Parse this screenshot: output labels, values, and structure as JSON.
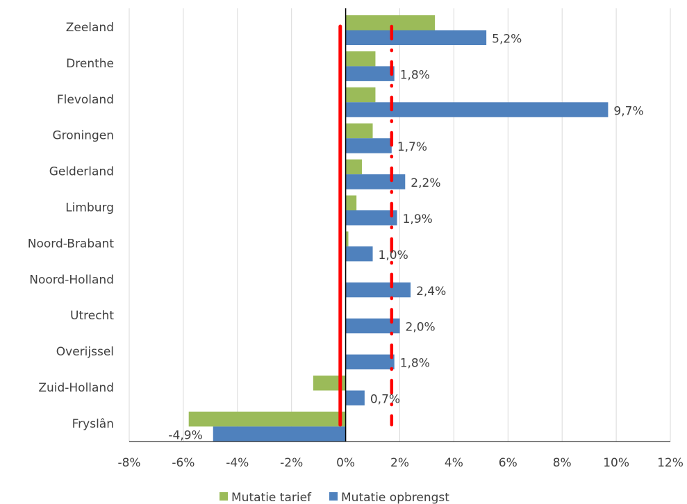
{
  "chart_data": {
    "type": "bar",
    "orientation": "horizontal",
    "categories": [
      "Zeeland",
      "Drenthe",
      "Flevoland",
      "Groningen",
      "Gelderland",
      "Limburg",
      "Noord-Brabant",
      "Noord-Holland",
      "Utrecht",
      "Overijssel",
      "Zuid-Holland",
      "Fryslân"
    ],
    "series": [
      {
        "name": "Mutatie tarief",
        "color": "#9bbb59",
        "values": [
          3.3,
          1.1,
          1.1,
          1.0,
          0.6,
          0.4,
          0.1,
          0.0,
          0.0,
          0.0,
          -1.2,
          -5.8
        ]
      },
      {
        "name": "Mutatie opbrengst",
        "color": "#4f81bd",
        "values": [
          5.2,
          1.8,
          9.7,
          1.7,
          2.2,
          1.9,
          1.0,
          2.4,
          2.0,
          1.8,
          0.7,
          -4.9
        ],
        "labels": [
          "5,2%",
          "1,8%",
          "9,7%",
          "1,7%",
          "2,2%",
          "1,9%",
          "1,0%",
          "2,4%",
          "2,0%",
          "1,8%",
          "0,7%",
          "-4,9%"
        ]
      }
    ],
    "xlim": [
      -8,
      12
    ],
    "xticks": [
      -8,
      -6,
      -4,
      -2,
      0,
      2,
      4,
      6,
      8,
      10,
      12
    ],
    "xtick_labels": [
      "-8%",
      "-6%",
      "-4%",
      "-2%",
      "0%",
      "2%",
      "4%",
      "6%",
      "8%",
      "10%",
      "12%"
    ],
    "grid": true,
    "legend_position": "bottom",
    "reference_lines": [
      {
        "style": "solid",
        "color": "#ff0000",
        "value": -0.2
      },
      {
        "style": "dash-dot",
        "color": "#ff0000",
        "value": 1.7
      }
    ]
  }
}
